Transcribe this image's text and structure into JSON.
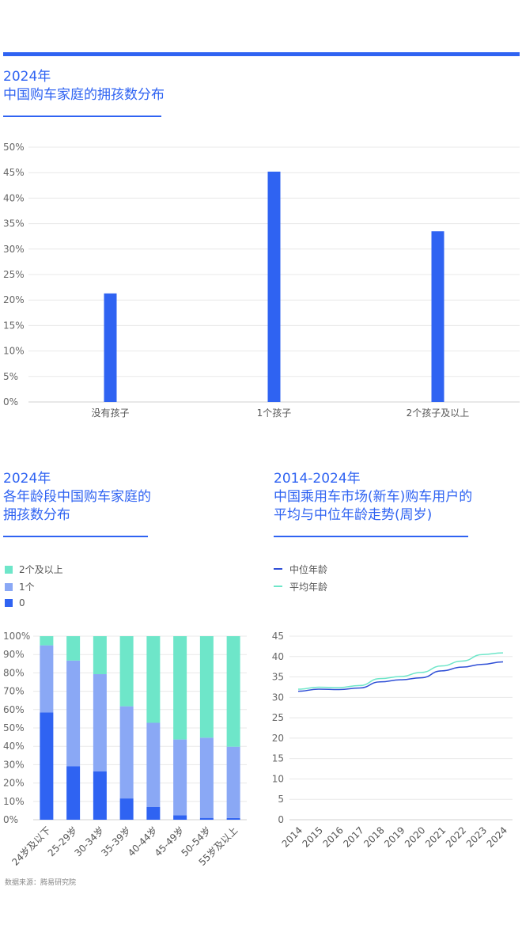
{
  "chart_data": [
    {
      "type": "bar",
      "title": "2024年\n中国购车家庭的拥孩数分布",
      "categories": [
        "没有孩子",
        "1个孩子",
        "2个孩子及以上"
      ],
      "values": [
        21.3,
        45.2,
        33.5
      ],
      "y_ticks": [
        "0%",
        "5%",
        "10%",
        "15%",
        "20%",
        "25%",
        "30%",
        "35%",
        "40%",
        "45%",
        "50%"
      ],
      "ylim": [
        0,
        50
      ],
      "color": "#2f63f2"
    },
    {
      "type": "bar",
      "stacked": true,
      "title": "2024年\n各年龄段中国购车家庭的\n拥孩数分布",
      "categories": [
        "24岁及以下",
        "25-29岁",
        "30-34岁",
        "35-39岁",
        "40-44岁",
        "45-49岁",
        "50-54岁",
        "55岁及以上"
      ],
      "series": [
        {
          "name": "0",
          "values": [
            58.4,
            29.2,
            26.4,
            11.6,
            6.9,
            2.4,
            1.0,
            0.9
          ],
          "color": "#2f63f2"
        },
        {
          "name": "1个",
          "values": [
            36.6,
            57.5,
            52.9,
            50.2,
            45.9,
            41.3,
            43.7,
            38.9
          ],
          "color": "#8aa8f5"
        },
        {
          "name": "2个及以上",
          "values": [
            5.0,
            13.3,
            20.7,
            38.2,
            47.2,
            56.3,
            55.3,
            60.2
          ],
          "color": "#6ee6c9"
        }
      ],
      "legend_order": [
        "2个及以上",
        "1个",
        "0"
      ],
      "y_ticks": [
        "0%",
        "10%",
        "20%",
        "30%",
        "40%",
        "50%",
        "60%",
        "70%",
        "80%",
        "90%",
        "100%"
      ],
      "ylim": [
        0,
        100
      ]
    },
    {
      "type": "line",
      "title": "2014-2024年\n中国乘用车市场(新车)购车用户的\n平均与中位年龄走势(周岁)",
      "x": [
        "2014",
        "2015",
        "2016",
        "2017",
        "2018",
        "2019",
        "2020",
        "2021",
        "2022",
        "2023",
        "2024"
      ],
      "series": [
        {
          "name": "中位年龄",
          "values": [
            31.5,
            32.0,
            31.9,
            32.3,
            33.8,
            34.3,
            34.8,
            36.5,
            37.4,
            38.1,
            38.7
          ],
          "color": "#2f4fd6"
        },
        {
          "name": "平均年龄",
          "values": [
            32.0,
            32.5,
            32.4,
            32.9,
            34.6,
            35.1,
            36.1,
            37.7,
            38.9,
            40.5,
            40.9
          ],
          "color": "#6ee6c9"
        }
      ],
      "y_ticks": [
        "0",
        "5",
        "10",
        "15",
        "20",
        "25",
        "30",
        "35",
        "40",
        "45"
      ],
      "ylim": [
        0,
        45
      ]
    }
  ],
  "source": "数据来源：腾易研究院"
}
